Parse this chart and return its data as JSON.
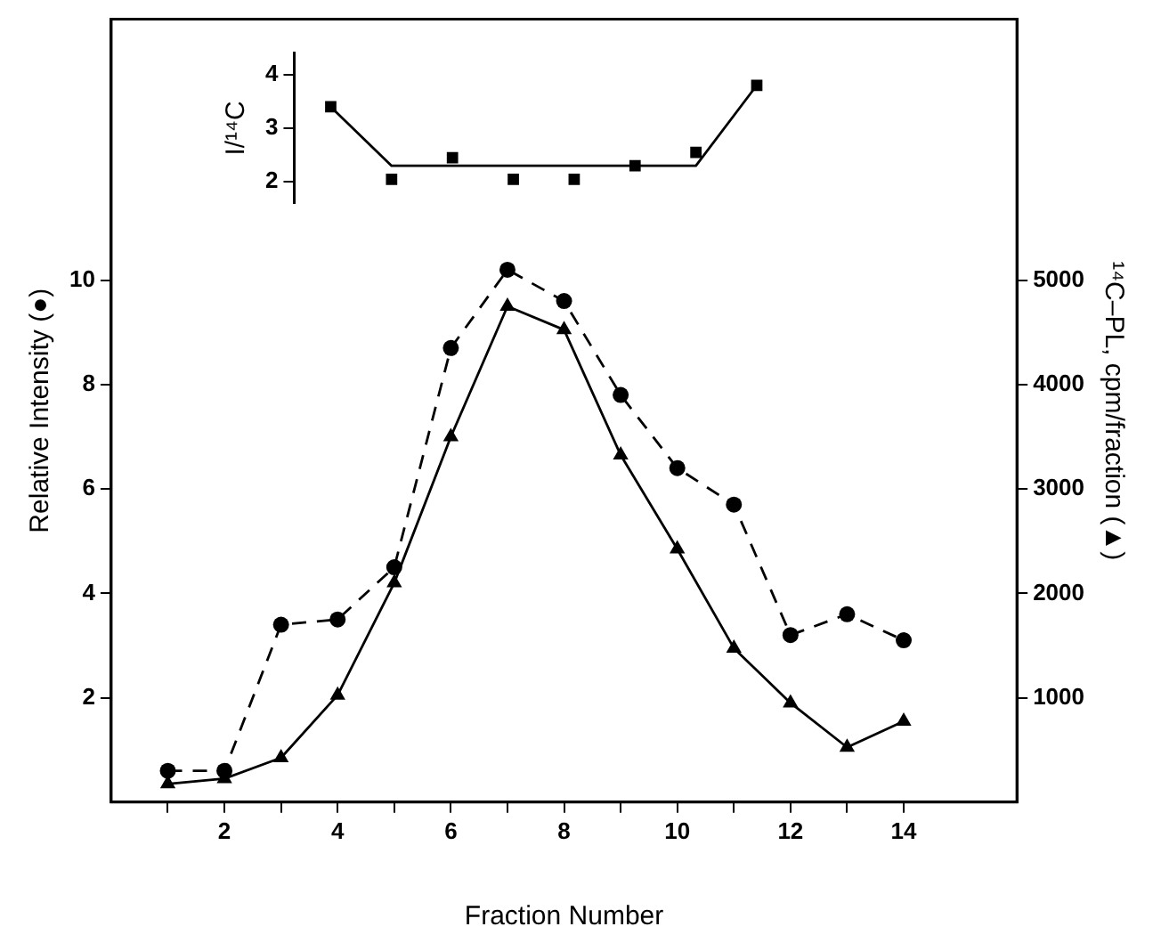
{
  "chart_data": [
    {
      "type": "line",
      "xlabel": "Fraction Number",
      "ylabel": "Relative Intensity (●)",
      "y2label": "¹⁴C–PL, cpm/fraction (▲)",
      "x": [
        1,
        2,
        3,
        4,
        5,
        6,
        7,
        8,
        9,
        10,
        11,
        12,
        13,
        14
      ],
      "series": [
        {
          "color": "#000000",
          "marker": "circle",
          "line_style": "dashed",
          "values": [
            0.6,
            0.6,
            3.4,
            3.5,
            4.5,
            8.7,
            10.2,
            9.6,
            7.8,
            6.4,
            5.7,
            3.2,
            3.6,
            3.1
          ]
        },
        {
          "color": "#000000",
          "marker": "triangle",
          "line_style": "solid",
          "axis": "y2",
          "values": [
            175,
            225,
            425,
            1025,
            2100,
            3500,
            4750,
            4525,
            3325,
            2425,
            1475,
            950,
            525,
            775
          ]
        }
      ],
      "xlim": [
        0,
        16
      ],
      "xticks": [
        {
          "value": 1,
          "label": null
        },
        2,
        {
          "value": 3,
          "label": null
        },
        4,
        {
          "value": 5,
          "label": null
        },
        6,
        {
          "value": 7,
          "label": null
        },
        8,
        {
          "value": 9,
          "label": null
        },
        10,
        {
          "value": 11,
          "label": null
        },
        12,
        {
          "value": 13,
          "label": null
        },
        14
      ],
      "ylim": [
        0,
        15
      ],
      "yticks": [
        2,
        4,
        6,
        8,
        10
      ],
      "y2lim": [
        0,
        7500
      ],
      "y2ticks": [
        1000,
        2000,
        3000,
        4000,
        5000
      ],
      "legend": false
    },
    {
      "type": "scatter",
      "ylabel": "I/¹⁴C",
      "categories": [
        null,
        null,
        null,
        null,
        null,
        null,
        null,
        null
      ],
      "series": [
        {
          "color": "#000000",
          "marker": "square",
          "values": [
            3.4,
            2.05,
            2.45,
            2.05,
            2.05,
            2.3,
            2.55,
            3.8
          ]
        },
        {
          "type": "line",
          "color": "#000000",
          "marker": "none",
          "line_style": "solid",
          "values": [
            3.4,
            2.3,
            2.3,
            2.3,
            2.3,
            2.3,
            2.3,
            3.8
          ]
        }
      ],
      "ylim": [
        1.6,
        4.4
      ],
      "yticks": [
        2,
        3,
        4
      ],
      "tick_labels": "y",
      "legend": false
    }
  ]
}
